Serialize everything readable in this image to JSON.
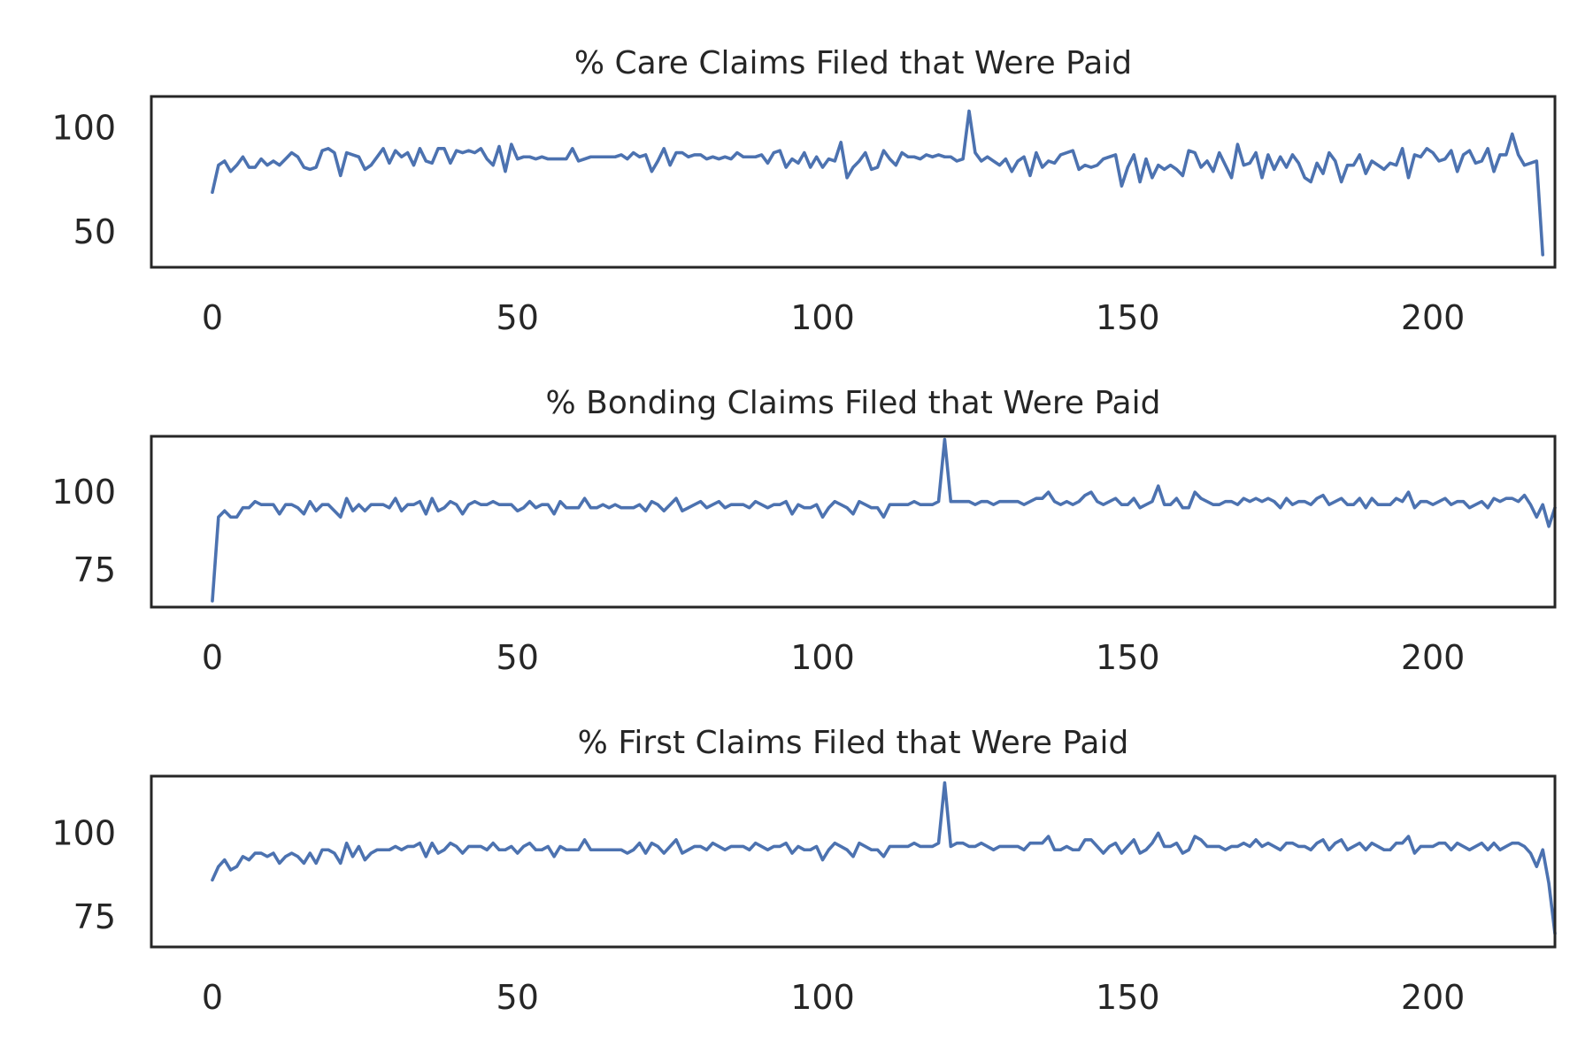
{
  "colors": {
    "line": "#4c72b0",
    "axes": "#262626",
    "background": "#ffffff"
  },
  "chart_data": [
    {
      "type": "line",
      "title": "% Care Claims Filed that Were Paid",
      "xlim": [
        -10,
        220
      ],
      "ylim": [
        33,
        115
      ],
      "xticks": [
        0,
        50,
        100,
        150,
        200
      ],
      "xtick_labels": [
        "0",
        "50",
        "100",
        "150",
        "200"
      ],
      "yticks": [
        50,
        100
      ],
      "ytick_labels": [
        "50",
        "100"
      ],
      "grid": false,
      "x_start": 0,
      "values": [
        69,
        82,
        84,
        79,
        82,
        86,
        81,
        81,
        85,
        82,
        84,
        82,
        85,
        88,
        86,
        81,
        80,
        81,
        89,
        90,
        88,
        77,
        88,
        87,
        86,
        80,
        82,
        86,
        90,
        83,
        89,
        86,
        88,
        82,
        90,
        84,
        83,
        90,
        90,
        83,
        89,
        88,
        89,
        88,
        90,
        85,
        82,
        91,
        79,
        92,
        85,
        86,
        86,
        85,
        86,
        85,
        85,
        85,
        85,
        90,
        84,
        85,
        86,
        86,
        86,
        86,
        86,
        87,
        85,
        88,
        86,
        87,
        79,
        84,
        90,
        82,
        88,
        88,
        86,
        87,
        87,
        85,
        86,
        85,
        86,
        85,
        88,
        86,
        86,
        86,
        87,
        83,
        88,
        89,
        81,
        85,
        83,
        88,
        81,
        86,
        81,
        85,
        84,
        93,
        76,
        81,
        84,
        88,
        80,
        81,
        89,
        85,
        82,
        88,
        86,
        86,
        85,
        87,
        86,
        87,
        86,
        86,
        84,
        85,
        108,
        88,
        84,
        86,
        84,
        82,
        85,
        79,
        84,
        86,
        77,
        88,
        81,
        84,
        83,
        87,
        88,
        89,
        80,
        82,
        81,
        82,
        85,
        86,
        87,
        72,
        81,
        87,
        74,
        85,
        76,
        82,
        80,
        82,
        80,
        77,
        89,
        88,
        81,
        84,
        79,
        88,
        82,
        76,
        92,
        82,
        83,
        88,
        76,
        87,
        80,
        86,
        81,
        87,
        83,
        76,
        74,
        83,
        78,
        88,
        84,
        74,
        82,
        82,
        87,
        78,
        84,
        82,
        80,
        83,
        82,
        90,
        76,
        87,
        86,
        90,
        88,
        84,
        85,
        89,
        79,
        87,
        89,
        83,
        84,
        90,
        79,
        87,
        87,
        97,
        87,
        82,
        83,
        84,
        39
      ]
    },
    {
      "type": "line",
      "title": "% Bonding Claims Filed that Were Paid",
      "xlim": [
        -10,
        220
      ],
      "ylim": [
        63,
        118
      ],
      "xticks": [
        0,
        50,
        100,
        150,
        200
      ],
      "xtick_labels": [
        "0",
        "50",
        "100",
        "150",
        "200"
      ],
      "yticks": [
        75,
        100
      ],
      "ytick_labels": [
        "75",
        "100"
      ],
      "grid": false,
      "x_start": 0,
      "values": [
        65,
        92,
        94,
        92,
        92,
        95,
        95,
        97,
        96,
        96,
        96,
        93,
        96,
        96,
        95,
        93,
        97,
        94,
        96,
        96,
        94,
        92,
        98,
        94,
        96,
        94,
        96,
        96,
        96,
        95,
        98,
        94,
        96,
        96,
        97,
        93,
        98,
        94,
        95,
        97,
        96,
        93,
        96,
        97,
        96,
        96,
        97,
        96,
        96,
        96,
        94,
        95,
        97,
        95,
        96,
        96,
        93,
        97,
        95,
        95,
        95,
        98,
        95,
        95,
        96,
        95,
        96,
        95,
        95,
        95,
        96,
        94,
        97,
        96,
        94,
        96,
        98,
        94,
        95,
        96,
        97,
        95,
        96,
        97,
        95,
        96,
        96,
        96,
        95,
        97,
        96,
        95,
        96,
        96,
        97,
        93,
        96,
        95,
        95,
        96,
        92,
        95,
        97,
        96,
        95,
        93,
        97,
        96,
        95,
        95,
        92,
        96,
        96,
        96,
        96,
        97,
        96,
        96,
        96,
        97,
        117,
        97,
        97,
        97,
        97,
        96,
        97,
        97,
        96,
        97,
        97,
        97,
        97,
        96,
        97,
        98,
        98,
        100,
        97,
        96,
        97,
        96,
        97,
        99,
        100,
        97,
        96,
        97,
        98,
        96,
        96,
        98,
        95,
        96,
        97,
        102,
        96,
        96,
        98,
        95,
        95,
        100,
        98,
        97,
        96,
        96,
        97,
        97,
        96,
        98,
        97,
        98,
        97,
        98,
        97,
        95,
        98,
        96,
        97,
        97,
        96,
        98,
        99,
        96,
        97,
        98,
        96,
        96,
        98,
        95,
        98,
        96,
        96,
        96,
        98,
        97,
        100,
        95,
        97,
        97,
        96,
        97,
        98,
        96,
        97,
        97,
        95,
        96,
        97,
        95,
        98,
        97,
        98,
        98,
        97,
        99,
        96,
        92,
        96,
        89,
        95
      ]
    },
    {
      "type": "line",
      "title": "% First Claims Filed that Were Paid",
      "xlim": [
        -10,
        220
      ],
      "ylim": [
        66,
        117
      ],
      "xticks": [
        0,
        50,
        100,
        150,
        200
      ],
      "xtick_labels": [
        "0",
        "50",
        "100",
        "150",
        "200"
      ],
      "yticks": [
        75,
        100
      ],
      "ytick_labels": [
        "75",
        "100"
      ],
      "grid": false,
      "x_start": 0,
      "values": [
        86,
        90,
        92,
        89,
        90,
        93,
        92,
        94,
        94,
        93,
        94,
        91,
        93,
        94,
        93,
        91,
        94,
        91,
        95,
        95,
        94,
        91,
        97,
        93,
        96,
        92,
        94,
        95,
        95,
        95,
        96,
        95,
        96,
        96,
        97,
        93,
        97,
        94,
        95,
        97,
        96,
        94,
        96,
        96,
        96,
        95,
        97,
        95,
        95,
        96,
        94,
        96,
        97,
        95,
        95,
        96,
        93,
        96,
        95,
        95,
        95,
        98,
        95,
        95,
        95,
        95,
        95,
        95,
        94,
        95,
        97,
        94,
        97,
        96,
        94,
        96,
        98,
        94,
        95,
        96,
        96,
        95,
        97,
        96,
        95,
        96,
        96,
        96,
        95,
        97,
        96,
        95,
        96,
        96,
        97,
        94,
        96,
        95,
        95,
        96,
        92,
        95,
        97,
        96,
        95,
        93,
        97,
        96,
        95,
        95,
        93,
        96,
        96,
        96,
        96,
        97,
        96,
        96,
        96,
        97,
        115,
        96,
        97,
        97,
        96,
        96,
        97,
        96,
        95,
        96,
        96,
        96,
        96,
        95,
        97,
        97,
        97,
        99,
        95,
        95,
        96,
        95,
        95,
        98,
        98,
        96,
        94,
        96,
        97,
        94,
        96,
        98,
        94,
        95,
        97,
        100,
        96,
        96,
        97,
        94,
        95,
        99,
        98,
        96,
        96,
        96,
        95,
        96,
        96,
        97,
        96,
        98,
        96,
        97,
        96,
        95,
        97,
        97,
        96,
        96,
        95,
        97,
        98,
        95,
        97,
        98,
        95,
        96,
        97,
        95,
        97,
        96,
        95,
        95,
        97,
        97,
        99,
        94,
        96,
        96,
        96,
        97,
        97,
        95,
        97,
        96,
        95,
        96,
        97,
        95,
        97,
        95,
        96,
        97,
        97,
        96,
        94,
        90,
        95,
        85,
        70
      ]
    }
  ]
}
